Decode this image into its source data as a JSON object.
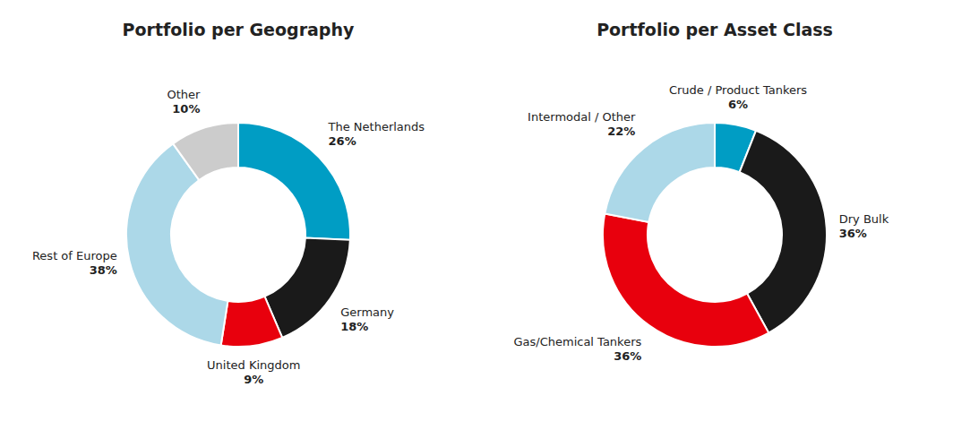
{
  "chart_data": [
    {
      "type": "donut",
      "title": "Portfolio per Geography",
      "categories": [
        "The Netherlands",
        "Germany",
        "United Kingdom",
        "Rest of Europe",
        "Other"
      ],
      "values": [
        26,
        18,
        9,
        38,
        10
      ],
      "value_labels": [
        "26%",
        "18%",
        "9%",
        "38%",
        "10%"
      ],
      "colors": [
        "#009DC4",
        "#1A1A1A",
        "#E8000D",
        "#ACD8E8",
        "#CCCCCC"
      ]
    },
    {
      "type": "donut",
      "title": "Portfolio per Asset Class",
      "categories": [
        "Crude / Product Tankers",
        "Dry Bulk",
        "Gas/Chemical Tankers",
        "Intermodal / Other"
      ],
      "values": [
        6,
        36,
        36,
        22
      ],
      "value_labels": [
        "6%",
        "36%",
        "36%",
        "22%"
      ],
      "colors": [
        "#009DC4",
        "#1A1A1A",
        "#E8000D",
        "#ACD8E8"
      ]
    }
  ]
}
